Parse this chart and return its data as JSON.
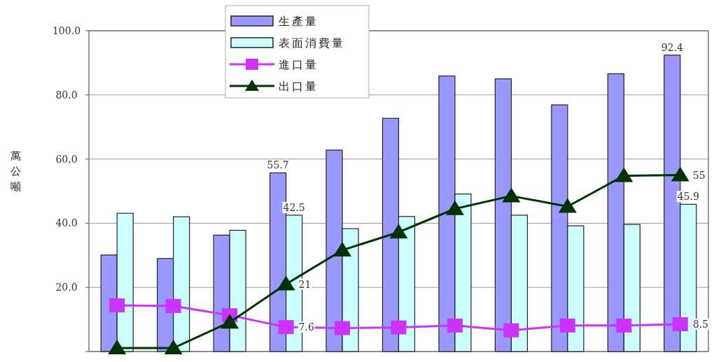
{
  "chart_data": {
    "type": "bar",
    "ylabel": "萬公噸",
    "categories": [
      null,
      null,
      null,
      null,
      null,
      null,
      null,
      null,
      null,
      null,
      null
    ],
    "series": [
      {
        "name": "生產量",
        "color": "#9999ff",
        "values": [
          30.1,
          29.0,
          36.3,
          55.7,
          62.8,
          72.7,
          85.9,
          85.0,
          76.9,
          86.6,
          92.4
        ],
        "value_labels": [
          null,
          null,
          null,
          "55.7",
          null,
          null,
          null,
          null,
          null,
          null,
          "92.4"
        ]
      },
      {
        "name": "表面消費量",
        "color": "#ccffff",
        "values": [
          43.1,
          42.0,
          37.8,
          42.5,
          38.3,
          42.1,
          49.1,
          42.5,
          39.2,
          39.6,
          45.9
        ],
        "value_labels": [
          null,
          null,
          null,
          "42.5",
          null,
          null,
          null,
          null,
          null,
          null,
          "45.9"
        ]
      },
      {
        "name": "進口量",
        "type": "line",
        "color": "#cc33ff",
        "marker": "square",
        "values": [
          14.4,
          14.2,
          11.3,
          7.6,
          7.3,
          7.5,
          8.1,
          6.6,
          8.1,
          8.1,
          8.5
        ],
        "value_labels": [
          null,
          null,
          null,
          "7.6",
          null,
          null,
          null,
          null,
          null,
          null,
          "8.5"
        ]
      },
      {
        "name": "出口量",
        "type": "line",
        "color": "#003300",
        "marker": "triangle",
        "values": [
          1.1,
          1.1,
          9.1,
          21,
          31.6,
          37.2,
          44.5,
          48.5,
          45.2,
          54.8,
          55
        ],
        "value_labels": [
          null,
          null,
          null,
          "21",
          null,
          null,
          null,
          null,
          null,
          null,
          "55"
        ]
      }
    ],
    "ylim": [
      0,
      100
    ],
    "yticks": [
      {
        "value": 0,
        "label": null
      },
      {
        "value": 20,
        "label": "20.0"
      },
      {
        "value": 40,
        "label": "40.0"
      },
      {
        "value": 60,
        "label": "60.0"
      },
      {
        "value": 80,
        "label": "80.0"
      },
      {
        "value": 100,
        "label": "100.0"
      }
    ],
    "grid": "y",
    "legend": "top"
  }
}
